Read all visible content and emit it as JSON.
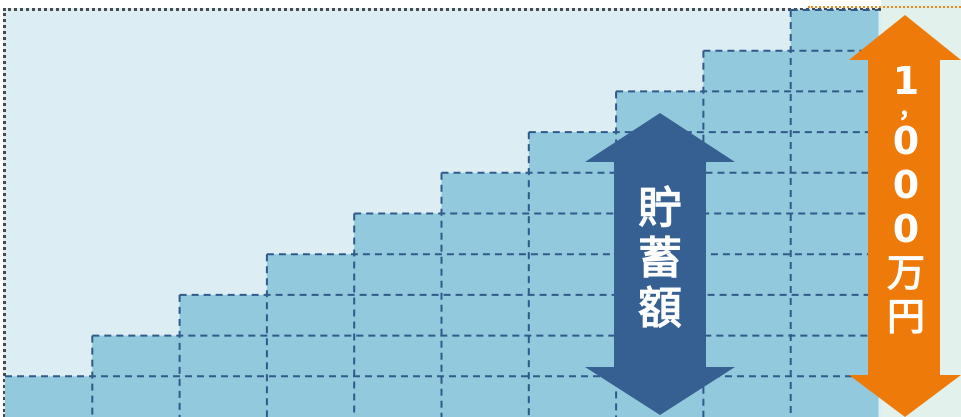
{
  "diagram": {
    "steps": 10,
    "colors": {
      "background": "#dcedf4",
      "bar_fill": "#93c9dc",
      "bar_dash": "#2f5a8a",
      "blue_arrow": "#365f92",
      "orange_arrow": "#ee7a0a"
    },
    "savings_label": [
      "貯",
      "蓄",
      "額"
    ],
    "total_label": [
      "1",
      "，",
      "0",
      "0",
      "0",
      "万",
      "円"
    ]
  }
}
